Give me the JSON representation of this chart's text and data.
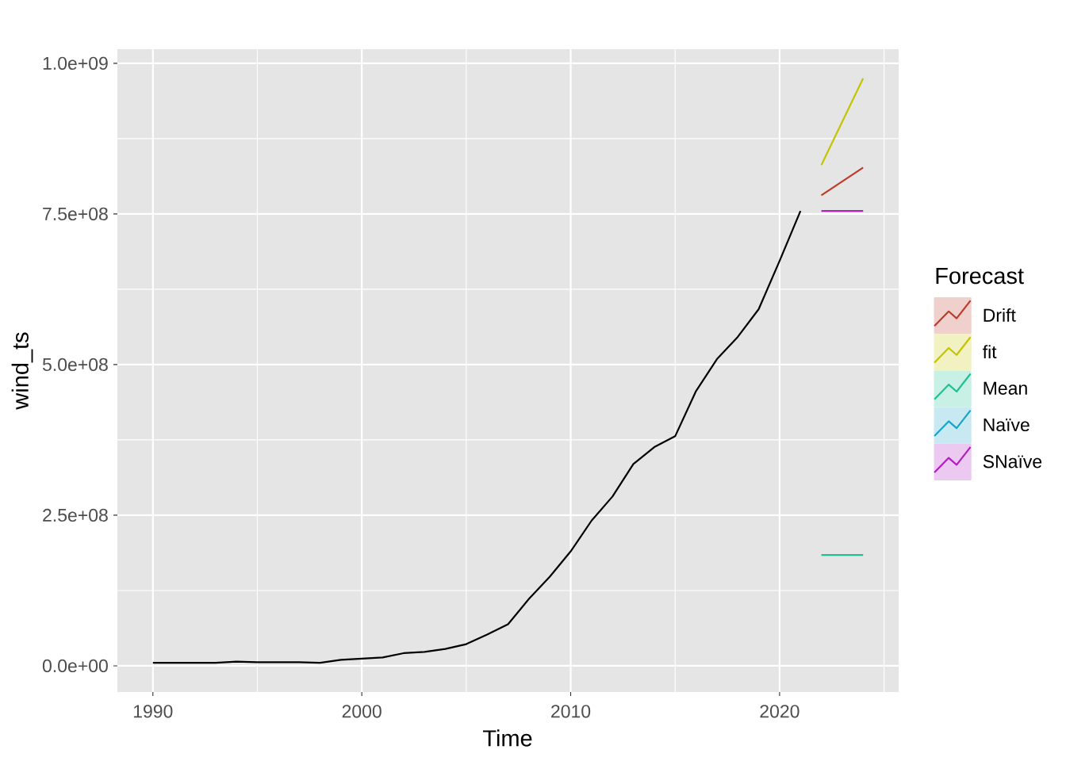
{
  "chart_data": {
    "type": "line",
    "xlabel": "Time",
    "ylabel": "wind_ts",
    "legend_title": "Forecast",
    "xlim": [
      1988.3,
      2025.7
    ],
    "ylim": [
      -43500000,
      1023500000
    ],
    "xticks": [
      1990,
      2000,
      2010,
      2020
    ],
    "yticks": [
      {
        "value": 0,
        "label": "0.0e+00"
      },
      {
        "value": 250000000,
        "label": "2.5e+08"
      },
      {
        "value": 500000000,
        "label": "5.0e+08"
      },
      {
        "value": 750000000,
        "label": "7.5e+08"
      },
      {
        "value": 1000000000,
        "label": "1.0e+09"
      }
    ],
    "grid": true,
    "legend": "right",
    "series": [
      {
        "color": "#000000",
        "x": [
          1990,
          1991,
          1992,
          1993,
          1994,
          1995,
          1996,
          1997,
          1998,
          1999,
          2000,
          2001,
          2002,
          2003,
          2004,
          2005,
          2006,
          2007,
          2008,
          2009,
          2010,
          2011,
          2012,
          2013,
          2014,
          2015,
          2016,
          2017,
          2018,
          2019,
          2020,
          2021
        ],
        "values": [
          5000000,
          5000000,
          5000000,
          5000000,
          7000000,
          6000000,
          6000000,
          6000000,
          5000000,
          10000000,
          12000000,
          14000000,
          21000000,
          23000000,
          28000000,
          36000000,
          52000000,
          69000000,
          111000000,
          148000000,
          190000000,
          241000000,
          281000000,
          335000000,
          363000000,
          381000000,
          456000000,
          509000000,
          546000000,
          592000000,
          672000000,
          755000000
        ]
      },
      {
        "name": "Drift",
        "color": "#C0392B",
        "x": [
          2022,
          2023,
          2024
        ],
        "values": [
          781000000,
          804000000,
          827000000
        ]
      },
      {
        "name": "fit",
        "color": "#C5C400",
        "x": [
          2022,
          2023,
          2024
        ],
        "values": [
          831000000,
          903000000,
          975000000
        ]
      },
      {
        "name": "Mean",
        "color": "#20C090",
        "x": [
          2022,
          2023,
          2024
        ],
        "values": [
          184000000,
          184000000,
          184000000
        ]
      },
      {
        "name": "Naïve",
        "color": "#1AA3C8",
        "values": [
          null,
          null,
          null
        ]
      },
      {
        "name": "SNaïve",
        "color": "#B020C0",
        "x": [
          2022,
          2023,
          2024
        ],
        "values": [
          755000000,
          755000000,
          755000000
        ]
      }
    ]
  }
}
